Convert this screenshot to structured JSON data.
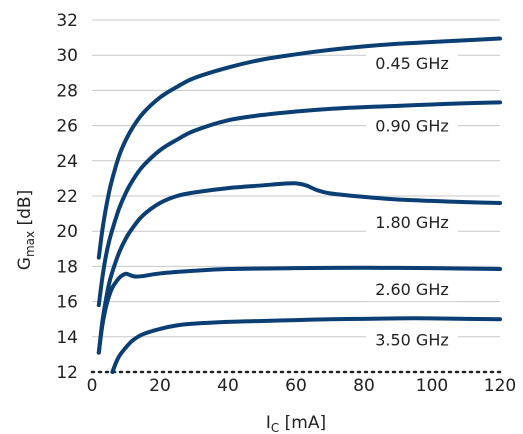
{
  "chart_data": {
    "type": "line",
    "title": "",
    "xlabel": {
      "main": "I",
      "sub": "C",
      "unit": " [mA]"
    },
    "ylabel": {
      "main": "G",
      "sub": "max",
      "unit": " [dB]"
    },
    "xlim": [
      0,
      120
    ],
    "ylim": [
      12,
      32
    ],
    "xticks": [
      0,
      20,
      40,
      60,
      80,
      100,
      120
    ],
    "yticks": [
      12,
      14,
      16,
      18,
      20,
      22,
      24,
      26,
      28,
      30,
      32
    ],
    "grid": "horizontal",
    "series_color": "#0b3f73",
    "series": [
      {
        "name": "0.45 GHz",
        "x": [
          2,
          3,
          4,
          5,
          6,
          8,
          10,
          12,
          15,
          20,
          25,
          30,
          40,
          50,
          60,
          70,
          80,
          90,
          100,
          110,
          120
        ],
        "y": [
          18.5,
          20.0,
          21.2,
          22.2,
          23.0,
          24.3,
          25.2,
          25.9,
          26.7,
          27.6,
          28.2,
          28.7,
          29.3,
          29.75,
          30.05,
          30.3,
          30.5,
          30.65,
          30.75,
          30.85,
          30.95
        ]
      },
      {
        "name": "0.90 GHz",
        "x": [
          2,
          3,
          4,
          5,
          6,
          8,
          10,
          12,
          15,
          20,
          25,
          30,
          40,
          50,
          60,
          70,
          80,
          90,
          100,
          110,
          120
        ],
        "y": [
          15.8,
          17.3,
          18.5,
          19.4,
          20.1,
          21.3,
          22.2,
          22.9,
          23.7,
          24.6,
          25.2,
          25.7,
          26.3,
          26.6,
          26.8,
          26.95,
          27.05,
          27.12,
          27.2,
          27.27,
          27.32
        ]
      },
      {
        "name": "1.80 GHz",
        "x": [
          2,
          3,
          4,
          5,
          6,
          8,
          10,
          12,
          15,
          20,
          25,
          30,
          40,
          50,
          55,
          60,
          63,
          66,
          70,
          80,
          90,
          100,
          110,
          120
        ],
        "y": [
          13.1,
          14.8,
          16.0,
          17.0,
          17.7,
          18.8,
          19.6,
          20.2,
          20.9,
          21.6,
          22.0,
          22.2,
          22.45,
          22.6,
          22.68,
          22.72,
          22.6,
          22.35,
          22.15,
          21.95,
          21.8,
          21.72,
          21.65,
          21.6
        ]
      },
      {
        "name": "2.60 GHz",
        "x": [
          2,
          3,
          4,
          5,
          6,
          7,
          8,
          9,
          10,
          11,
          12,
          13,
          15,
          20,
          30,
          40,
          60,
          80,
          100,
          120
        ],
        "y": [
          13.1,
          14.6,
          15.6,
          16.3,
          16.8,
          17.1,
          17.35,
          17.5,
          17.58,
          17.52,
          17.45,
          17.42,
          17.45,
          17.6,
          17.75,
          17.85,
          17.9,
          17.92,
          17.9,
          17.85
        ]
      },
      {
        "name": "3.50 GHz",
        "x": [
          6,
          7,
          8,
          10,
          12,
          15,
          20,
          25,
          30,
          40,
          50,
          60,
          70,
          80,
          90,
          100,
          110,
          120
        ],
        "y": [
          12.0,
          12.5,
          12.9,
          13.4,
          13.8,
          14.15,
          14.45,
          14.65,
          14.75,
          14.85,
          14.9,
          14.95,
          15.0,
          15.02,
          15.05,
          15.05,
          15.02,
          15.0
        ]
      }
    ]
  }
}
